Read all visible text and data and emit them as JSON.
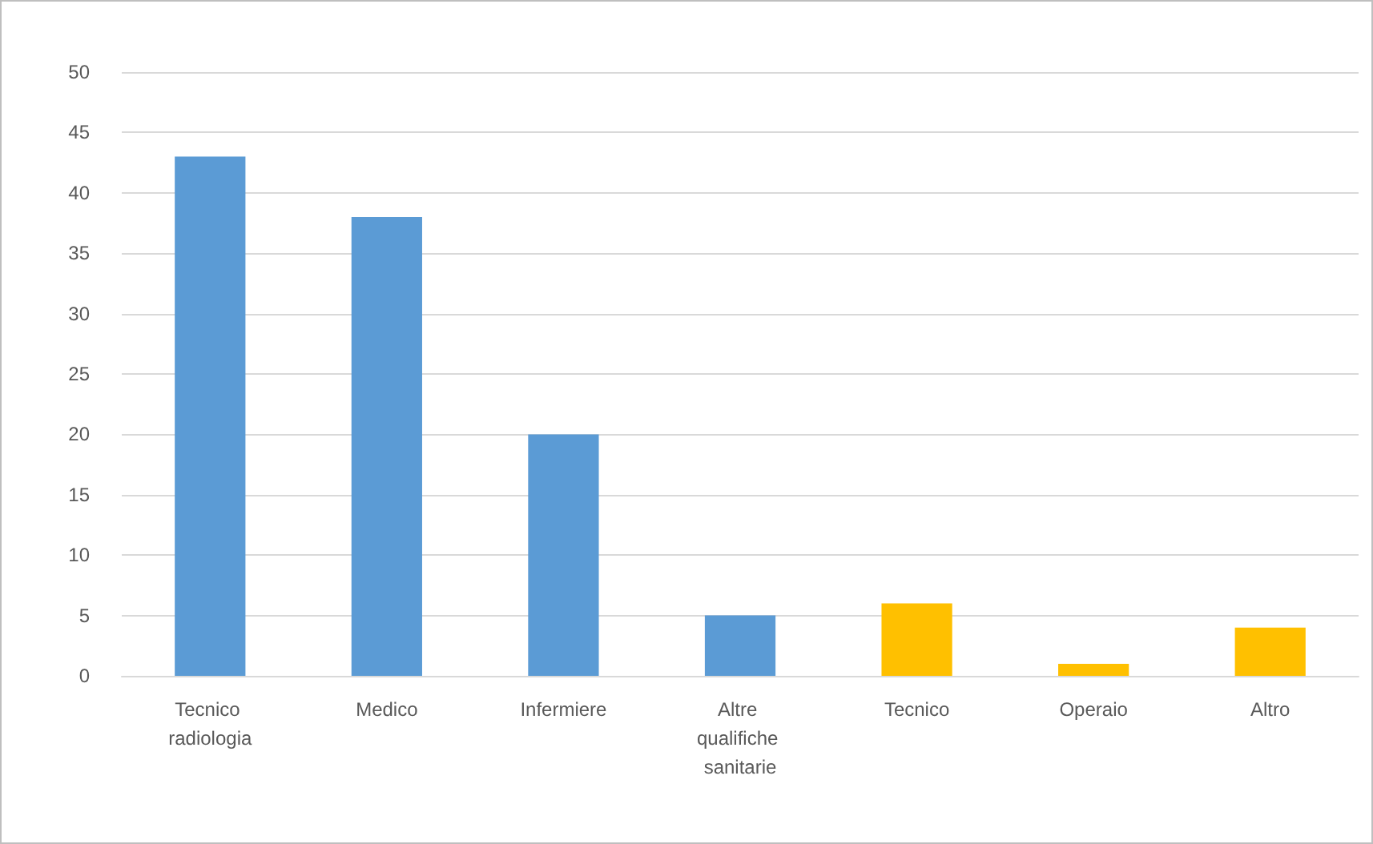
{
  "chart_data": {
    "type": "bar",
    "categories": [
      "Tecnico radiologia",
      "Medico",
      "Infermiere",
      "Altre qualifiche sanitarie",
      "Tecnico",
      "Operaio",
      "Altro"
    ],
    "values": [
      43,
      38,
      20,
      5,
      6,
      1,
      4
    ],
    "colors": [
      "#5b9bd5",
      "#5b9bd5",
      "#5b9bd5",
      "#5b9bd5",
      "#ffc000",
      "#ffc000",
      "#ffc000"
    ],
    "ylim": [
      0,
      50
    ],
    "yticks": [
      0,
      5,
      10,
      15,
      20,
      25,
      30,
      35,
      40,
      45,
      50
    ],
    "grid": "y"
  }
}
